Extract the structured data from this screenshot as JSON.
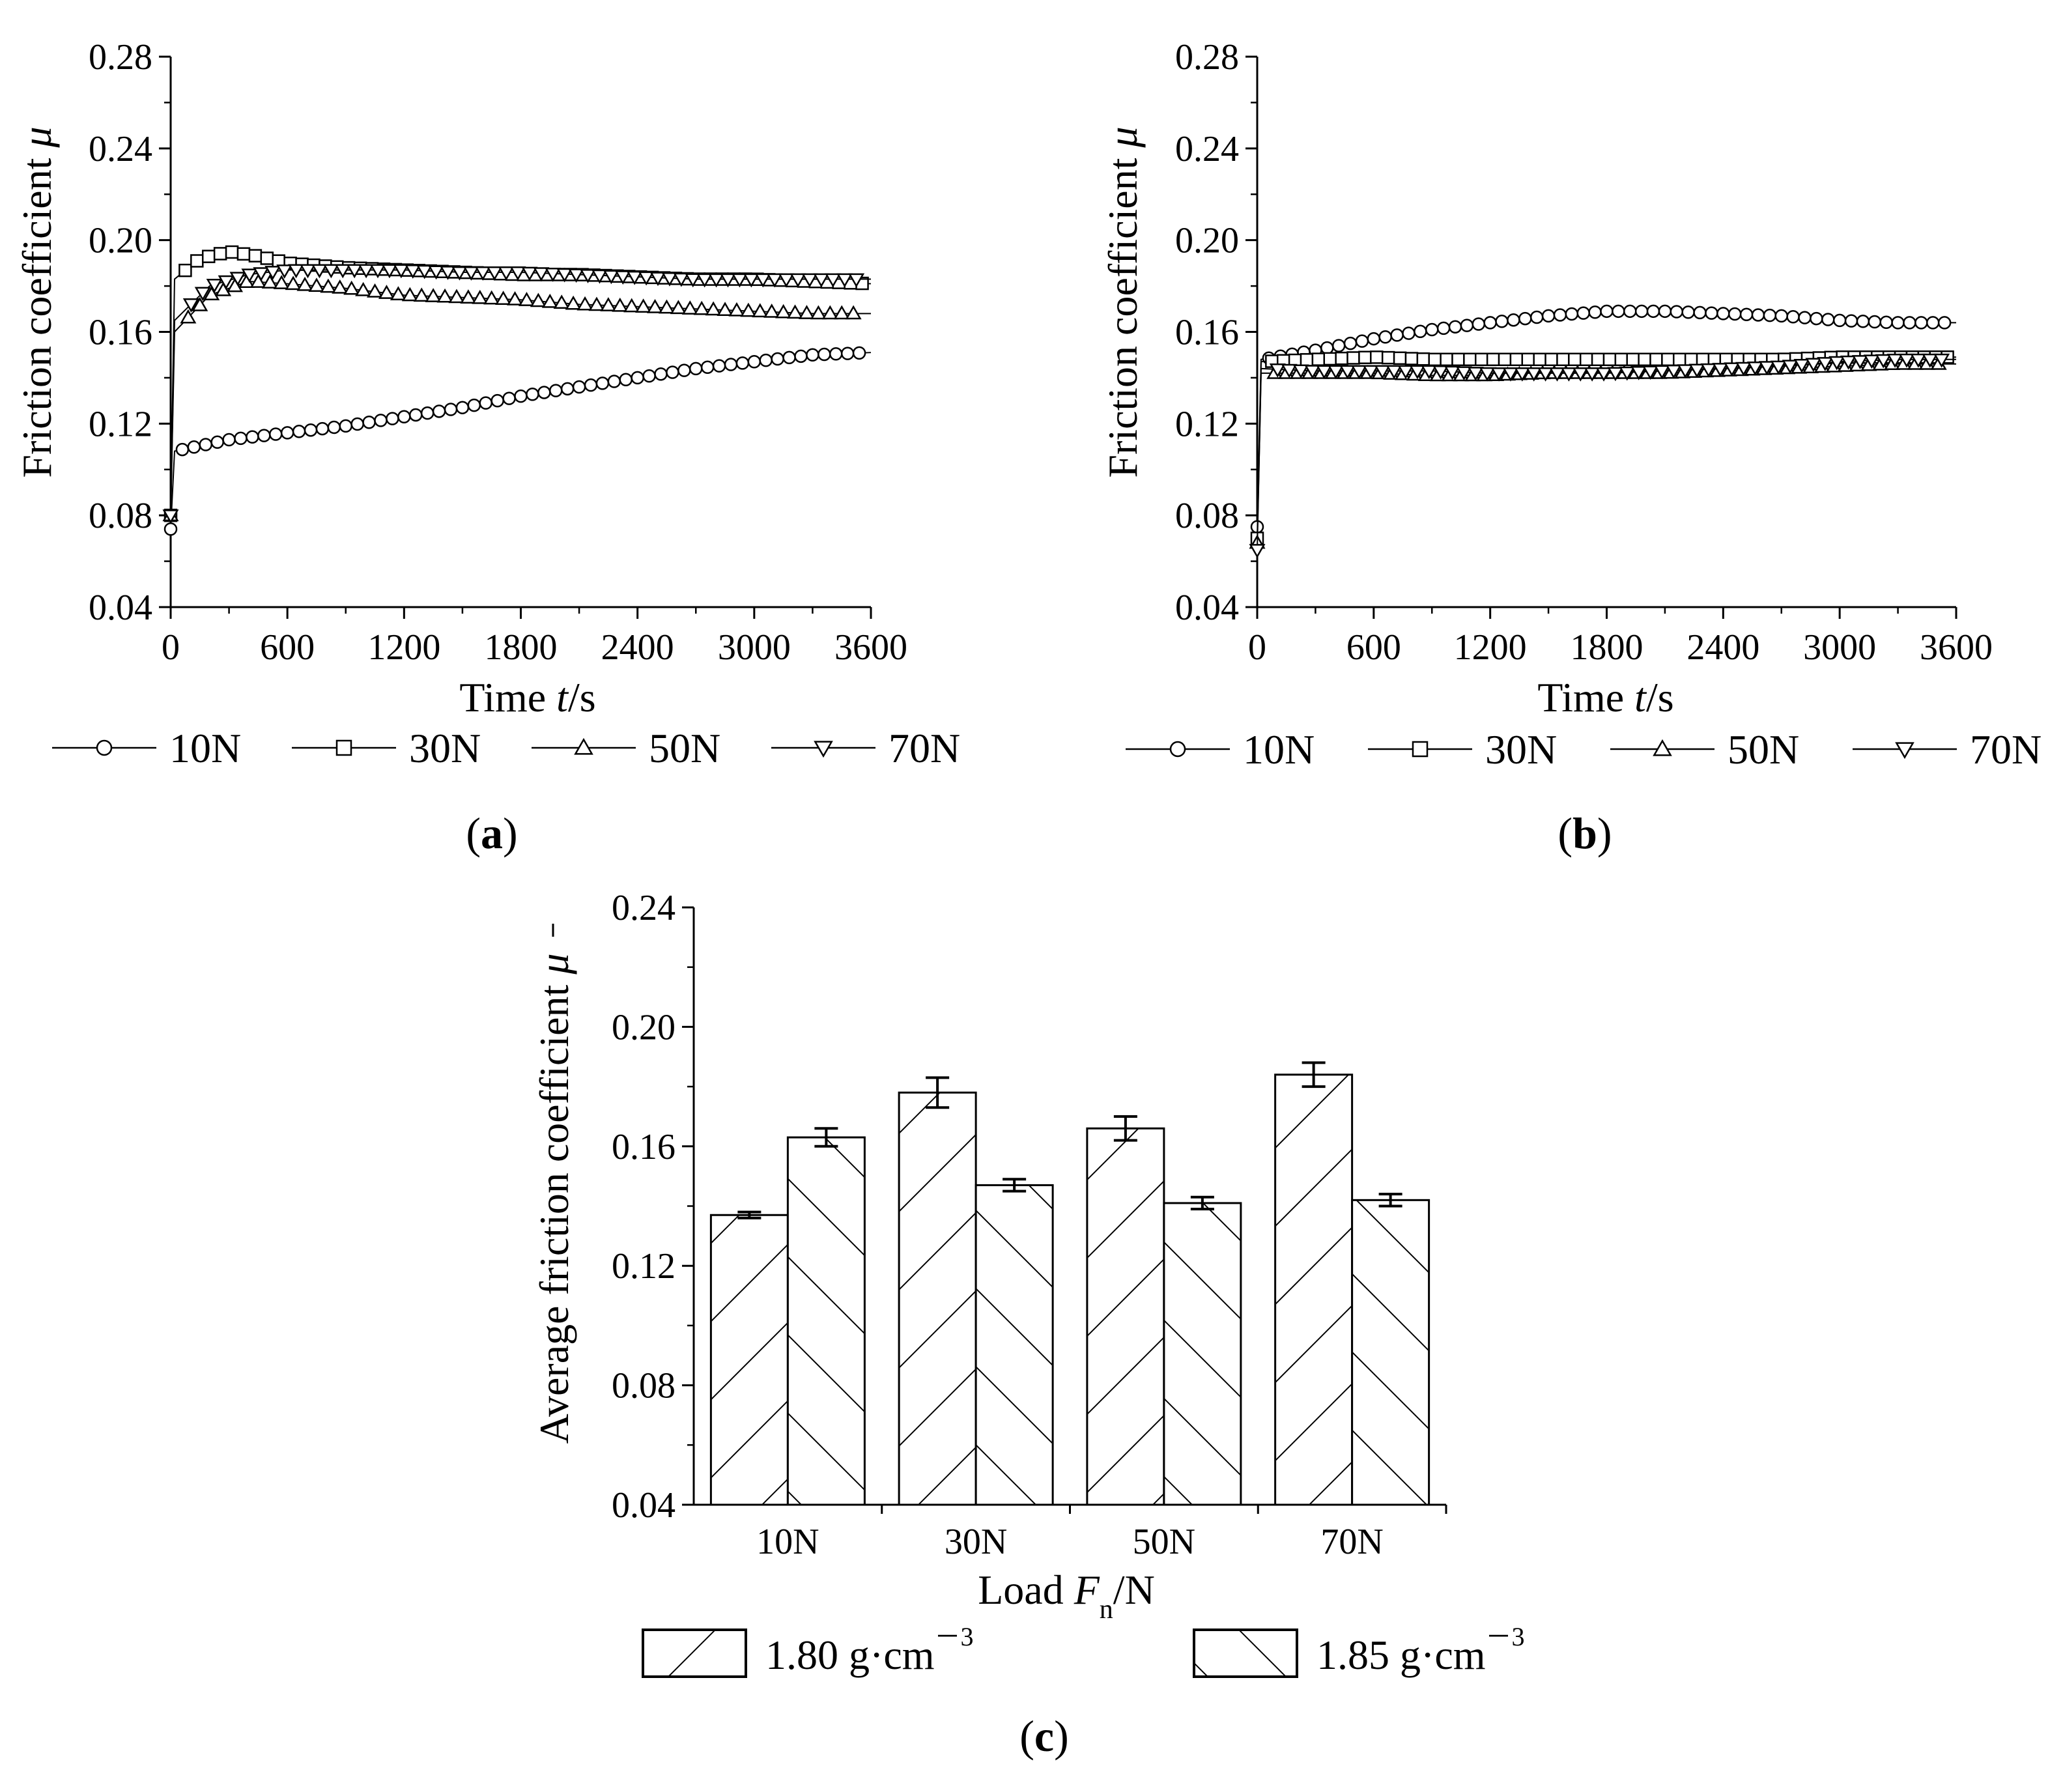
{
  "panels": {
    "a": {
      "caption_open": "(",
      "caption_letter": "a",
      "caption_close": ")"
    },
    "b": {
      "caption_open": "(",
      "caption_letter": "b",
      "caption_close": ")"
    },
    "c": {
      "caption_open": "(",
      "caption_letter": "c",
      "caption_close": ")"
    }
  },
  "chart_data": [
    {
      "id": "a",
      "type": "line",
      "xlabel_parts": [
        "Time ",
        "t",
        "/s"
      ],
      "ylabel_parts": [
        "Friction coefficient ",
        "μ"
      ],
      "xlim": [
        0,
        3600
      ],
      "ylim": [
        0.04,
        0.28
      ],
      "xticks": [
        0,
        600,
        1200,
        1800,
        2400,
        3000,
        3600
      ],
      "xtick_labels": [
        "0",
        "600",
        "1200",
        "1800",
        "2400",
        "3000",
        "3600"
      ],
      "yticks": [
        0.04,
        0.08,
        0.12,
        0.16,
        0.2,
        0.24,
        0.28
      ],
      "ytick_labels": [
        "0.04",
        "0.08",
        "0.12",
        "0.16",
        "0.20",
        "0.24",
        "0.28"
      ],
      "grid": false,
      "legend_position": "bottom",
      "series": [
        {
          "name": "10N",
          "marker": "circle",
          "x": [
            0,
            20,
            300,
            600,
            900,
            1200,
            1500,
            1800,
            2100,
            2400,
            2700,
            3000,
            3300,
            3600
          ],
          "y": [
            0.074,
            0.108,
            0.113,
            0.116,
            0.119,
            0.123,
            0.127,
            0.132,
            0.136,
            0.14,
            0.144,
            0.147,
            0.15,
            0.151
          ]
        },
        {
          "name": "30N",
          "marker": "square",
          "x": [
            0,
            20,
            150,
            300,
            450,
            600,
            900,
            1200,
            1500,
            1800,
            2100,
            2400,
            2700,
            3000,
            3300,
            3600
          ],
          "y": [
            0.08,
            0.183,
            0.192,
            0.195,
            0.193,
            0.19,
            0.188,
            0.187,
            0.186,
            0.185,
            0.185,
            0.184,
            0.183,
            0.183,
            0.182,
            0.181
          ]
        },
        {
          "name": "50N",
          "marker": "triangle-up",
          "x": [
            0,
            20,
            200,
            400,
            600,
            900,
            1200,
            1500,
            1800,
            2100,
            2400,
            2700,
            3000,
            3300,
            3600
          ],
          "y": [
            0.08,
            0.16,
            0.176,
            0.182,
            0.181,
            0.179,
            0.176,
            0.175,
            0.174,
            0.172,
            0.171,
            0.17,
            0.169,
            0.168,
            0.168
          ]
        },
        {
          "name": "70N",
          "marker": "triangle-down",
          "x": [
            0,
            20,
            200,
            400,
            600,
            900,
            1200,
            1500,
            1800,
            2100,
            2400,
            2700,
            3000,
            3300,
            3600
          ],
          "y": [
            0.08,
            0.165,
            0.18,
            0.185,
            0.187,
            0.187,
            0.187,
            0.186,
            0.186,
            0.185,
            0.184,
            0.183,
            0.183,
            0.183,
            0.183
          ]
        }
      ]
    },
    {
      "id": "b",
      "type": "line",
      "xlabel_parts": [
        "Time ",
        "t",
        "/s"
      ],
      "ylabel_parts": [
        "Friction coefficient ",
        "μ"
      ],
      "xlim": [
        0,
        3600
      ],
      "ylim": [
        0.04,
        0.28
      ],
      "xticks": [
        0,
        600,
        1200,
        1800,
        2400,
        3000,
        3600
      ],
      "xtick_labels": [
        "0",
        "600",
        "1200",
        "1800",
        "2400",
        "3000",
        "3600"
      ],
      "yticks": [
        0.04,
        0.08,
        0.12,
        0.16,
        0.2,
        0.24,
        0.28
      ],
      "ytick_labels": [
        "0.04",
        "0.08",
        "0.12",
        "0.16",
        "0.20",
        "0.24",
        "0.28"
      ],
      "grid": false,
      "legend_position": "bottom",
      "series": [
        {
          "name": "10N",
          "marker": "circle",
          "x": [
            0,
            20,
            300,
            600,
            900,
            1200,
            1500,
            1800,
            2100,
            2400,
            2700,
            3000,
            3300,
            3600
          ],
          "y": [
            0.075,
            0.148,
            0.152,
            0.157,
            0.161,
            0.164,
            0.167,
            0.169,
            0.169,
            0.168,
            0.167,
            0.165,
            0.164,
            0.164
          ]
        },
        {
          "name": "30N",
          "marker": "square",
          "x": [
            0,
            20,
            300,
            600,
            900,
            1200,
            1500,
            1800,
            2100,
            2400,
            2700,
            3000,
            3300,
            3600
          ],
          "y": [
            0.07,
            0.147,
            0.148,
            0.149,
            0.148,
            0.148,
            0.148,
            0.148,
            0.148,
            0.148,
            0.148,
            0.149,
            0.149,
            0.149
          ]
        },
        {
          "name": "50N",
          "marker": "triangle-up",
          "x": [
            0,
            20,
            300,
            600,
            900,
            1200,
            1500,
            1800,
            2100,
            2400,
            2700,
            3000,
            3300,
            3600
          ],
          "y": [
            0.068,
            0.142,
            0.142,
            0.142,
            0.141,
            0.141,
            0.142,
            0.142,
            0.142,
            0.143,
            0.144,
            0.145,
            0.146,
            0.146
          ]
        },
        {
          "name": "70N",
          "marker": "triangle-down",
          "x": [
            0,
            20,
            300,
            600,
            900,
            1200,
            1500,
            1800,
            2100,
            2400,
            2700,
            3000,
            3300,
            3600
          ],
          "y": [
            0.065,
            0.144,
            0.143,
            0.143,
            0.143,
            0.142,
            0.142,
            0.142,
            0.143,
            0.144,
            0.145,
            0.147,
            0.148,
            0.148
          ]
        }
      ]
    },
    {
      "id": "c",
      "type": "bar",
      "categories": [
        "10N",
        "30N",
        "50N",
        "70N"
      ],
      "xlabel_parts": [
        "Load ",
        "F",
        "n",
        "/N"
      ],
      "ylabel_parts": [
        "Average friction coefficient  ",
        "μ"
      ],
      "ylim": [
        0.04,
        0.24
      ],
      "yticks": [
        0.04,
        0.08,
        0.12,
        0.16,
        0.2,
        0.24
      ],
      "ytick_labels": [
        "0.04",
        "0.08",
        "0.12",
        "0.16",
        "0.20",
        "0.24"
      ],
      "grid": false,
      "legend_position": "bottom",
      "series": [
        {
          "name_parts": [
            "1.80 g·cm",
            "－3"
          ],
          "hatch": "forward",
          "values": [
            0.137,
            0.178,
            0.166,
            0.184
          ],
          "errors": [
            0.001,
            0.005,
            0.004,
            0.004
          ]
        },
        {
          "name_parts": [
            "1.85 g·cm",
            "－3"
          ],
          "hatch": "backward",
          "values": [
            0.163,
            0.147,
            0.141,
            0.142
          ],
          "errors": [
            0.003,
            0.002,
            0.002,
            0.002
          ]
        }
      ]
    }
  ]
}
